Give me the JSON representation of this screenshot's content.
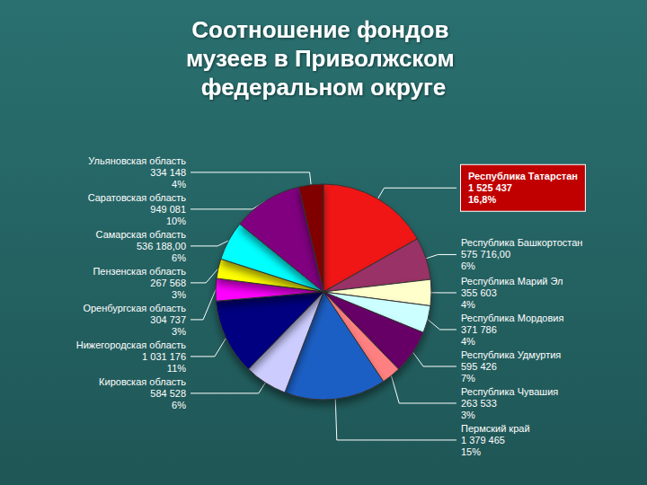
{
  "chart_data": {
    "type": "pie",
    "title": "Соотношение фондов музеев в Приволжском федеральном округе",
    "categories": [
      "Республика Татарстан",
      "Республика Башкортостан",
      "Республика Марий Эл",
      "Республика Мордовия",
      "Республика Удмуртия",
      "Республика Чувашия",
      "Пермский край",
      "Кировская область",
      "Нижегородская область",
      "Оренбургская область",
      "Пензенская область",
      "Самарская область",
      "Саратовская область",
      "Ульяновская область"
    ],
    "values": [
      1525437,
      575716,
      355603,
      371786,
      595426,
      263533,
      1379465,
      584528,
      1031176,
      304737,
      267568,
      536188,
      949081,
      334148
    ],
    "value_labels": [
      "1 525 437",
      "575 716,00",
      "355 603",
      "371 786",
      "595 426",
      "263 533",
      "1 379 465",
      "584 528",
      "1 031 176",
      "304 737",
      "267 568",
      "536 188,00",
      "949 081",
      "334 148"
    ],
    "percents": [
      16.8,
      6,
      4,
      4,
      7,
      3,
      15,
      6,
      11,
      3,
      3,
      6,
      10,
      4
    ],
    "percent_labels": [
      "16,8%",
      "6%",
      "4%",
      "4%",
      "7%",
      "3%",
      "15%",
      "6%",
      "11%",
      "3%",
      "3%",
      "6%",
      "10%",
      "4%"
    ],
    "colors": [
      "#f01818",
      "#993366",
      "#ffffcc",
      "#ccffff",
      "#660066",
      "#ff8080",
      "#1f5fc4",
      "#ccccff",
      "#000080",
      "#ff00ff",
      "#ffff00",
      "#00ffff",
      "#800080",
      "#800000"
    ],
    "data_labels": true
  }
}
